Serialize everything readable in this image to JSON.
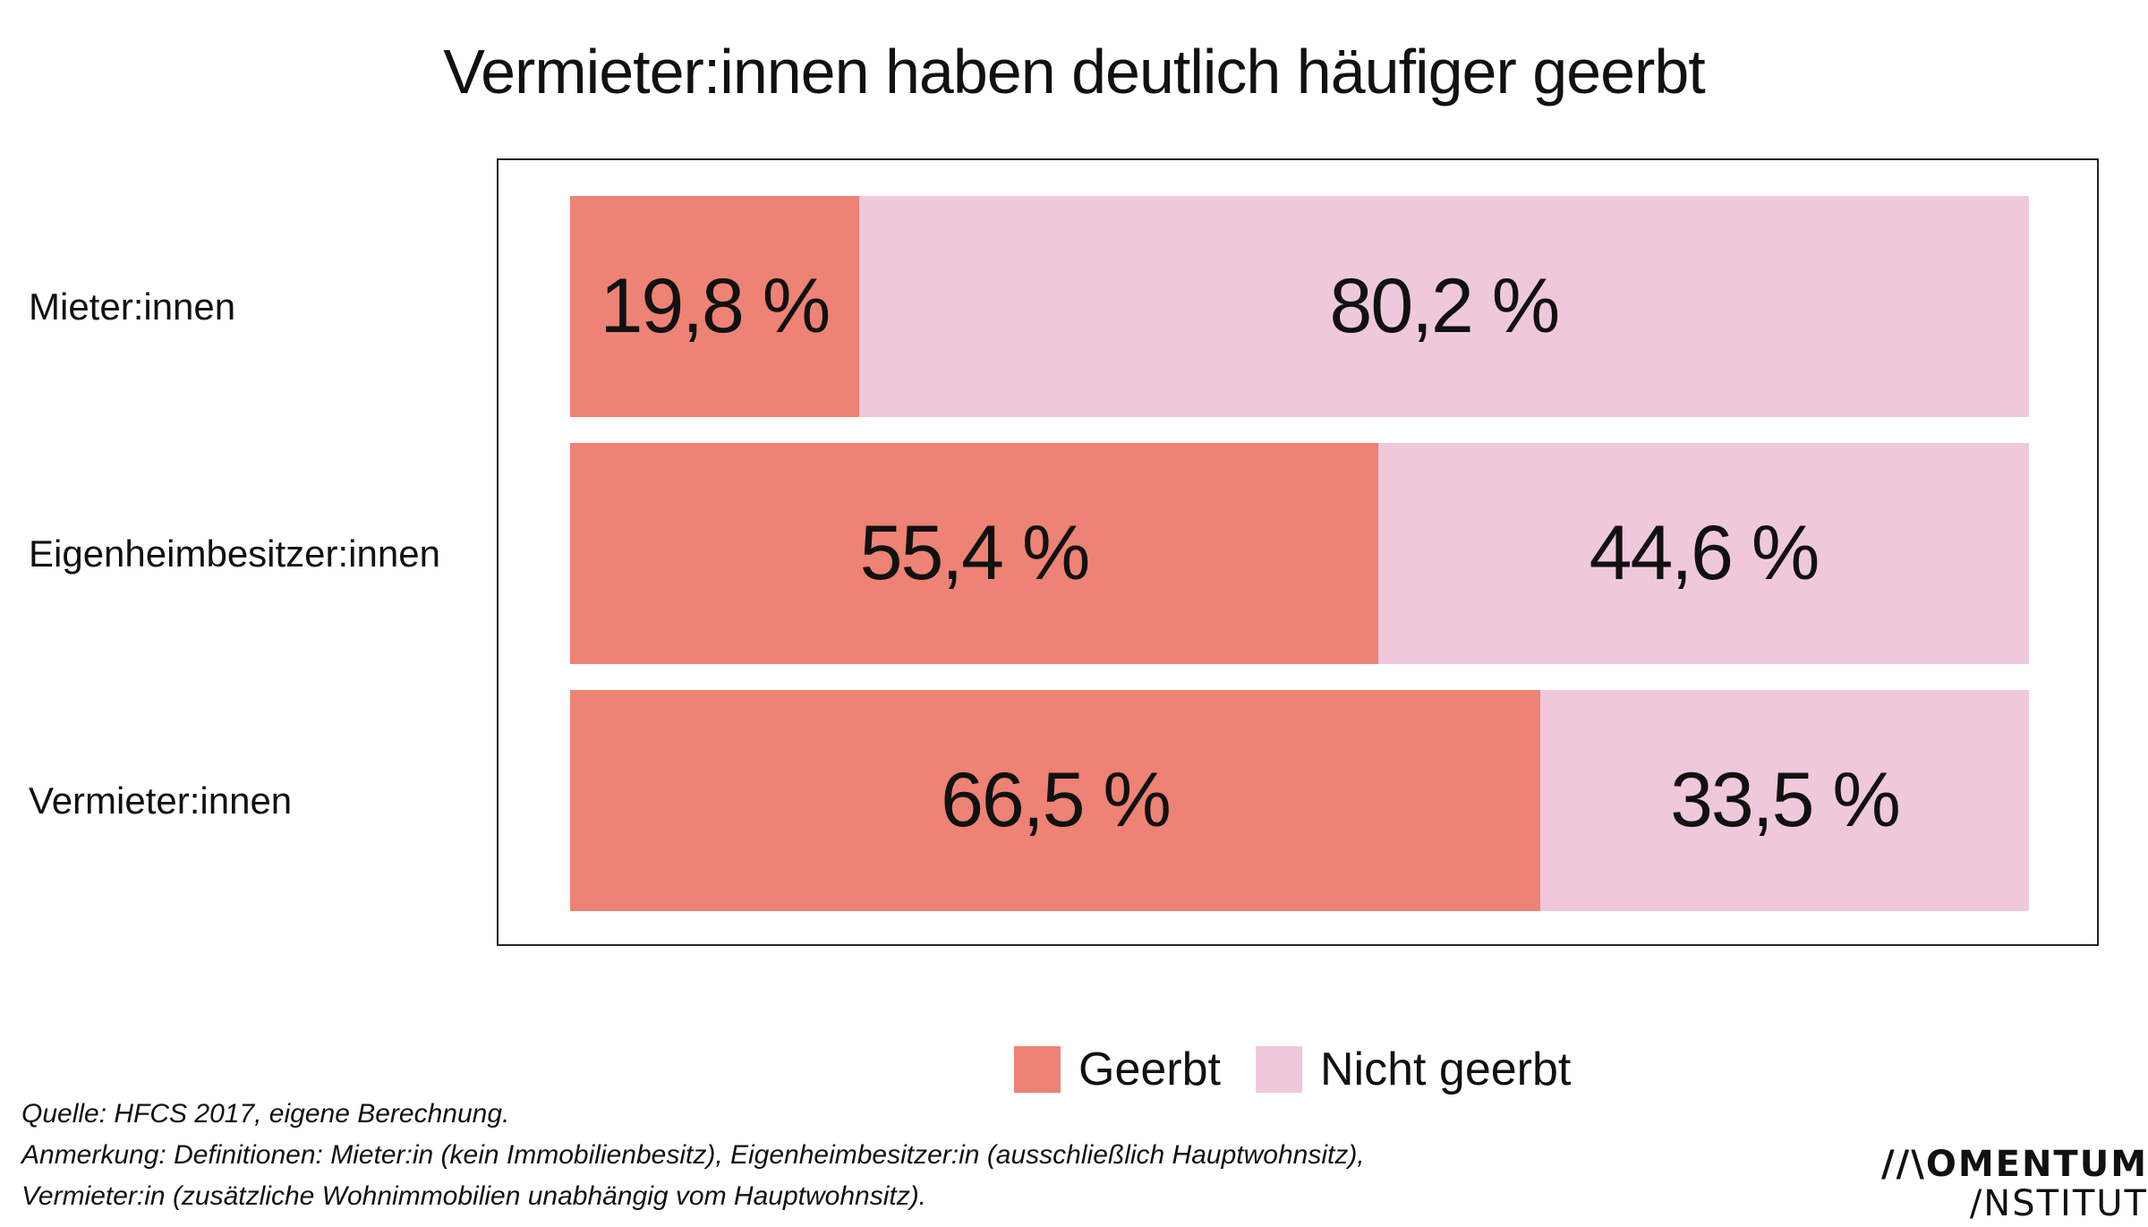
{
  "title": "Vermieter:innen haben deutlich häufiger geerbt",
  "chart_data": {
    "type": "bar",
    "orientation": "horizontal",
    "stacked": true,
    "categories": [
      "Mieter:innen",
      "Eigenheimbesitzer:innen",
      "Vermieter:innen"
    ],
    "series": [
      {
        "name": "Geerbt",
        "values": [
          19.8,
          55.4,
          66.5
        ],
        "labels": [
          "19,8 %",
          "55,4 %",
          "66,5 %"
        ],
        "color": "#EE8274"
      },
      {
        "name": "Nicht geerbt",
        "values": [
          80.2,
          44.6,
          33.5
        ],
        "labels": [
          "80,2 %",
          "44,6 %",
          "33,5 %"
        ],
        "color": "#F0C8DC"
      }
    ],
    "xlim": [
      0,
      100
    ],
    "grid": false,
    "legend_position": "bottom-right"
  },
  "legend": [
    {
      "label": "Geerbt",
      "color": "#EE8274"
    },
    {
      "label": "Nicht geerbt",
      "color": "#F0C8DC"
    }
  ],
  "footnotes": {
    "source": "Quelle: HFCS 2017, eigene Berechnung.",
    "note_line1": "Anmerkung: Definitionen: Mieter:in (kein Immobilienbesitz), Eigenheimbesitzer:in (ausschließlich Hauptwohnsitz),",
    "note_line2": "Vermieter:in (zusätzliche Wohnimmobilien unabhängig vom Hauptwohnsitz)."
  },
  "logo": {
    "line1": "//\\OMENTUM",
    "line2": "/NSTITUT"
  }
}
